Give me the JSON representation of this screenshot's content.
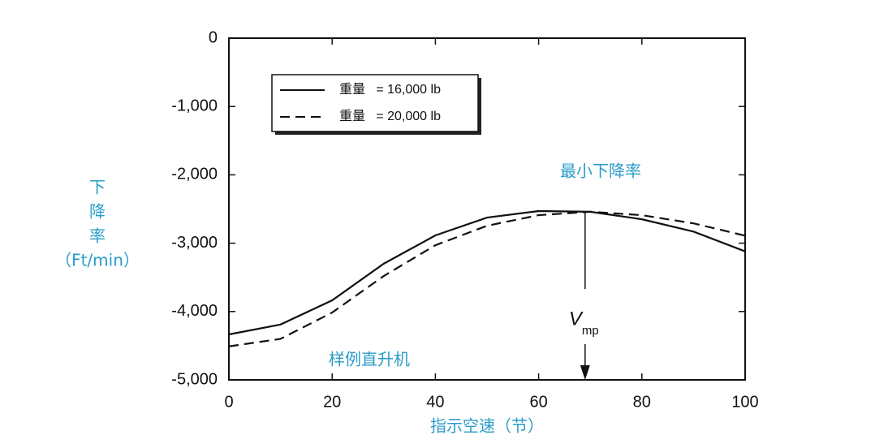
{
  "chart_data": {
    "type": "line",
    "x": [
      0,
      10,
      20,
      30,
      40,
      50,
      60,
      70,
      80,
      90,
      100
    ],
    "series": [
      {
        "name": "重量   = 16,000 lb",
        "color": "#111111",
        "dash": "solid",
        "values": [
          -4335,
          -4190,
          -3836,
          -3300,
          -2886,
          -2625,
          -2530,
          -2540,
          -2650,
          -2830,
          -3120
        ]
      },
      {
        "name": "重量   = 20,000 lb",
        "color": "#111111",
        "dash": "dashed",
        "values": [
          -4510,
          -4400,
          -4015,
          -3480,
          -3030,
          -2745,
          -2590,
          -2540,
          -2590,
          -2710,
          -2890
        ]
      }
    ],
    "xlim": [
      0,
      100
    ],
    "xticks": [
      0,
      20,
      40,
      60,
      80,
      100
    ],
    "ylim": [
      -5000,
      0
    ],
    "yticks": [
      {
        "value": -5000,
        "label": "-5,000"
      },
      {
        "value": -4000,
        "label": "-4,000"
      },
      {
        "value": -3000,
        "label": "-3,000"
      },
      {
        "value": -2000,
        "label": "-2,000"
      },
      {
        "value": -1000,
        "label": "-1,000"
      },
      0
    ],
    "x_label": "指示空速（节）",
    "y_label": [
      "下",
      "降",
      "率",
      "（Ft/min）"
    ],
    "annotations": [
      "最小下降率",
      "样例直升机"
    ],
    "marker": {
      "symbol": "V",
      "subscript": "mp",
      "x": 69
    },
    "legend": "upper left"
  }
}
